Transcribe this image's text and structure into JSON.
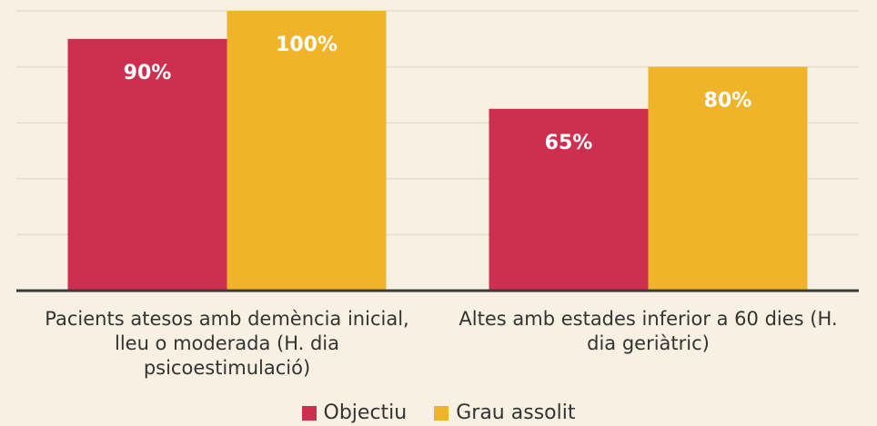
{
  "chart_data": {
    "type": "bar",
    "categories": [
      "Pacients atesos amb demència inicial, lleu o moderada (H. dia psicoestimulació)",
      "Altes amb estades inferior a 60 dies (H. dia geriàtric)"
    ],
    "series": [
      {
        "name": "Objectiu",
        "color": "#cf2f4e",
        "values": [
          90,
          65
        ],
        "value_labels": [
          "90%",
          "65%"
        ]
      },
      {
        "name": "Grau assolit",
        "color": "#f0b42a",
        "values": [
          100,
          80
        ],
        "value_labels": [
          "100%",
          "80%"
        ]
      }
    ],
    "ylim": [
      0,
      100
    ],
    "yticks": [
      0,
      20,
      40,
      60,
      80,
      100
    ],
    "grid": true,
    "legend": "bottom"
  }
}
